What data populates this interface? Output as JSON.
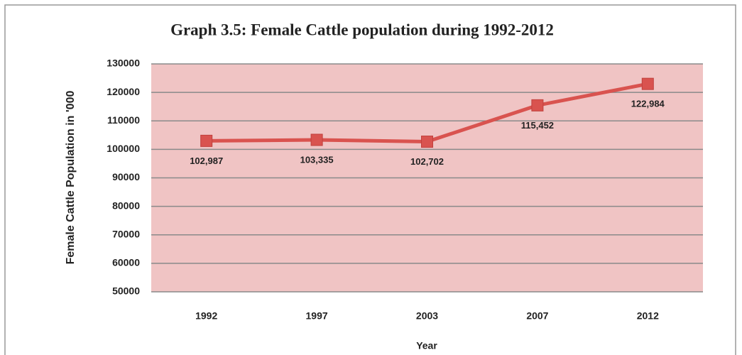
{
  "chart_data": {
    "type": "line",
    "title": "Graph 3.5:  Female Cattle population during 1992-2012",
    "x_label": "Year",
    "y_label": "Female Cattle Population in '000",
    "categories": [
      "1992",
      "1997",
      "2003",
      "2007",
      "2012"
    ],
    "series": [
      {
        "name": "Female Cattle",
        "color": "#d9534f",
        "values": [
          102987,
          103335,
          102702,
          115452,
          122984
        ],
        "value_labels": [
          "102,987",
          "103,335",
          "102,702",
          "115,452",
          "122,984"
        ]
      }
    ],
    "ylim": [
      50000,
      130000
    ],
    "yticks": [
      50000,
      60000,
      70000,
      80000,
      90000,
      100000,
      110000,
      120000,
      130000
    ],
    "grid": true
  }
}
